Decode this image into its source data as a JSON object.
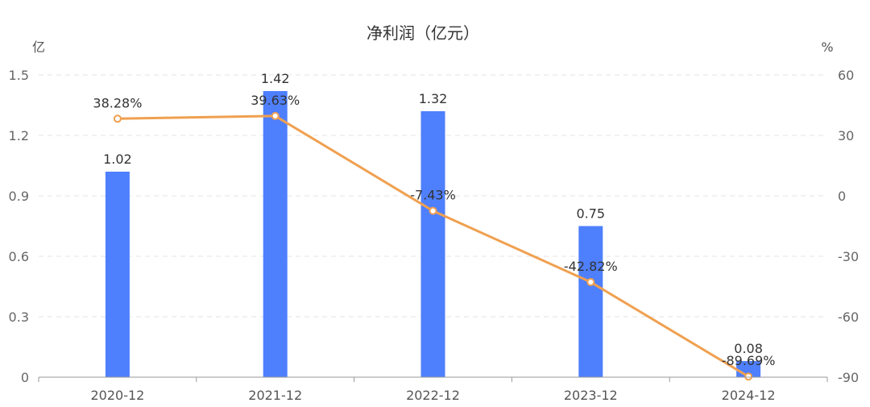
{
  "chart_data": {
    "type": "bar",
    "title": "净利润（亿元）",
    "categories": [
      "2020-12",
      "2021-12",
      "2022-12",
      "2023-12",
      "2024-12"
    ],
    "series": [
      {
        "type": "bar",
        "axis": "left",
        "values": [
          1.02,
          1.42,
          1.32,
          0.75,
          0.08
        ],
        "labels": [
          "1.02",
          "1.42",
          "1.32",
          "0.75",
          "0.08"
        ],
        "color": "#4e7ffd"
      },
      {
        "type": "line",
        "axis": "right",
        "values": [
          38.28,
          39.63,
          -7.43,
          -42.82,
          -89.69
        ],
        "labels": [
          "38.28%",
          "39.63%",
          "-7.43%",
          "-42.82%",
          "-89.69%"
        ],
        "color": "#f0a050"
      }
    ],
    "y_left": {
      "unit": "亿",
      "ylim": [
        0,
        1.5
      ],
      "ticks": [
        "0",
        "0.3",
        "0.6",
        "0.9",
        "1.2",
        "1.5"
      ]
    },
    "y_right": {
      "unit": "%",
      "ylim": [
        -90,
        60
      ],
      "ticks": [
        "-90",
        "-60",
        "-30",
        "0",
        "30",
        "60"
      ]
    },
    "grid": true,
    "legend": "none"
  }
}
